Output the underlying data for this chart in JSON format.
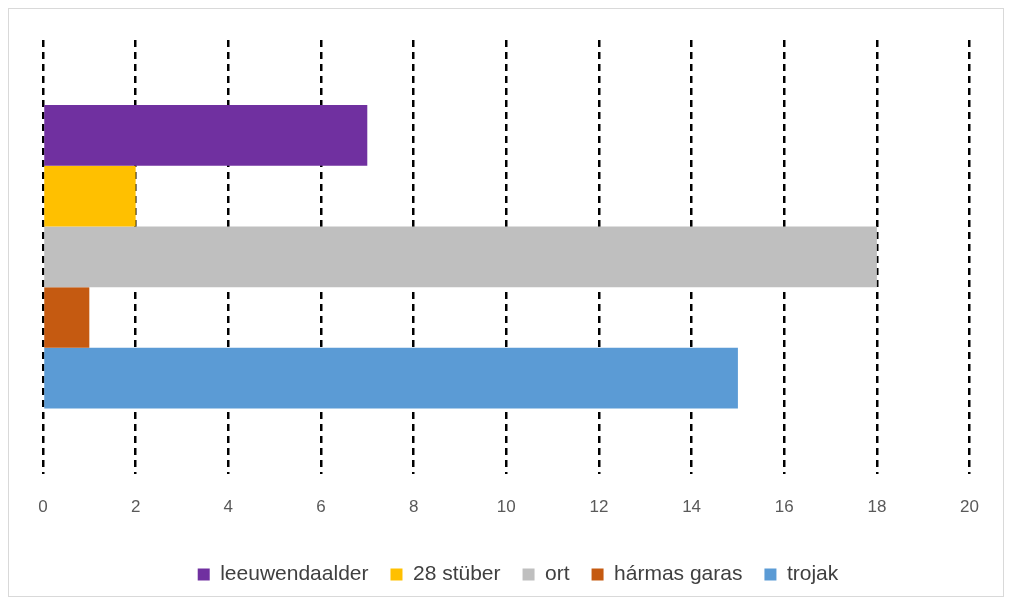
{
  "chart_data": {
    "type": "bar",
    "orientation": "horizontal",
    "categories": [
      null
    ],
    "series": [
      {
        "name": "leeuwendaalder",
        "color": "#7030a0",
        "values": [
          7
        ]
      },
      {
        "name": "28 stüber",
        "color": "#ffc000",
        "values": [
          2
        ]
      },
      {
        "name": "ort",
        "color": "#bfbfbf",
        "values": [
          18
        ]
      },
      {
        "name": "hármas garas",
        "color": "#c55a11",
        "values": [
          1
        ]
      },
      {
        "name": "trojak",
        "color": "#5b9bd5",
        "values": [
          15
        ]
      }
    ],
    "xlim": [
      0,
      20
    ],
    "xticks": [
      0,
      2,
      4,
      6,
      8,
      10,
      12,
      14,
      16,
      18,
      20
    ],
    "grid": "x",
    "legend": "bottom"
  }
}
